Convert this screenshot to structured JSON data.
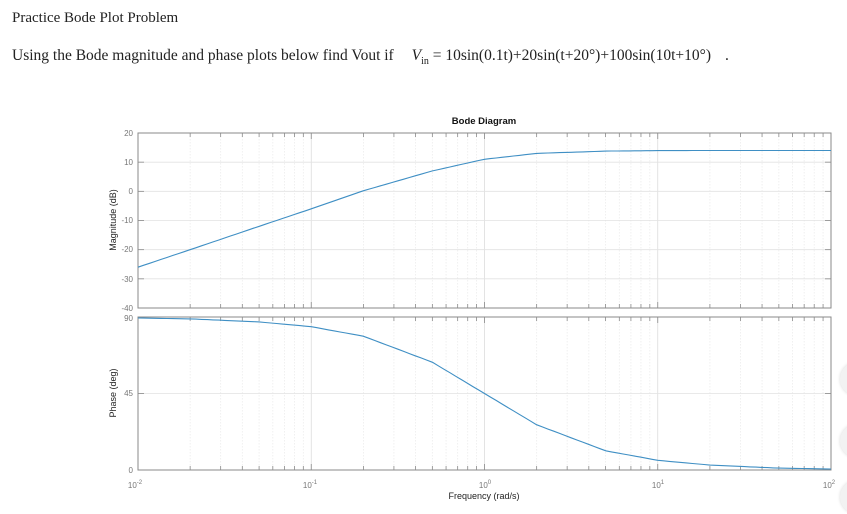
{
  "page": {
    "title": "Practice Bode Plot Problem",
    "question_text": "Using the Bode magnitude and phase plots below find Vout if",
    "equation": {
      "lhs_var": "V",
      "lhs_sub": "in",
      "rhs": "= 10sin(0.1t)+20sin(t+20°)+100sin(10t+10°)",
      "terminator": "."
    }
  },
  "chart_data": [
    {
      "type": "line",
      "title": "Bode Diagram",
      "panel": "magnitude",
      "xlabel": "Frequency (rad/s)",
      "ylabel": "Magnitude (dB)",
      "xscale": "log",
      "xlim": [
        0.01,
        100
      ],
      "ylim": [
        -40,
        20
      ],
      "yticks": [
        20,
        10,
        0,
        -10,
        -20,
        -30,
        -40
      ],
      "xticks": [
        "10^-2",
        "10^-1",
        "10^0",
        "10^1",
        "10^2"
      ],
      "grid": true,
      "series": [
        {
          "name": "Magnitude",
          "color": "#3f8fc4",
          "x": [
            0.01,
            0.02,
            0.05,
            0.1,
            0.2,
            0.5,
            1,
            2,
            5,
            10,
            20,
            50,
            100
          ],
          "y": [
            -26.0,
            -20.0,
            -12.0,
            -6.0,
            0.2,
            7.0,
            11.0,
            13.0,
            13.8,
            13.95,
            14.0,
            14.0,
            14.0
          ]
        }
      ]
    },
    {
      "type": "line",
      "panel": "phase",
      "xlabel": "Frequency (rad/s)",
      "ylabel": "Phase (deg)",
      "xscale": "log",
      "xlim": [
        0.01,
        100
      ],
      "ylim": [
        0,
        90
      ],
      "yticks": [
        90,
        45,
        0
      ],
      "xticks": [
        "10^-2",
        "10^-1",
        "10^0",
        "10^1",
        "10^2"
      ],
      "grid": true,
      "series": [
        {
          "name": "Phase",
          "color": "#3f8fc4",
          "x": [
            0.01,
            0.02,
            0.05,
            0.1,
            0.2,
            0.5,
            1,
            2,
            5,
            10,
            20,
            50,
            100
          ],
          "y": [
            89.4,
            88.9,
            87.1,
            84.3,
            78.7,
            63.4,
            45.0,
            26.6,
            11.3,
            5.7,
            2.9,
            1.1,
            0.6
          ]
        }
      ]
    }
  ],
  "plot_labels": {
    "title": "Bode Diagram",
    "mag_ylabel": "Magnitude (dB)",
    "phase_ylabel": "Phase (deg)",
    "xlabel": "Frequency  (rad/s)",
    "mag_ticks": [
      "20",
      "10",
      "0",
      "-10",
      "-20",
      "-30",
      "-40"
    ],
    "phase_ticks": [
      "90",
      "45",
      "0"
    ],
    "x_tick_base": [
      "10",
      "10",
      "10",
      "10",
      "10"
    ],
    "x_tick_exp": [
      "-2",
      "-1",
      "0",
      "1",
      "2"
    ]
  }
}
